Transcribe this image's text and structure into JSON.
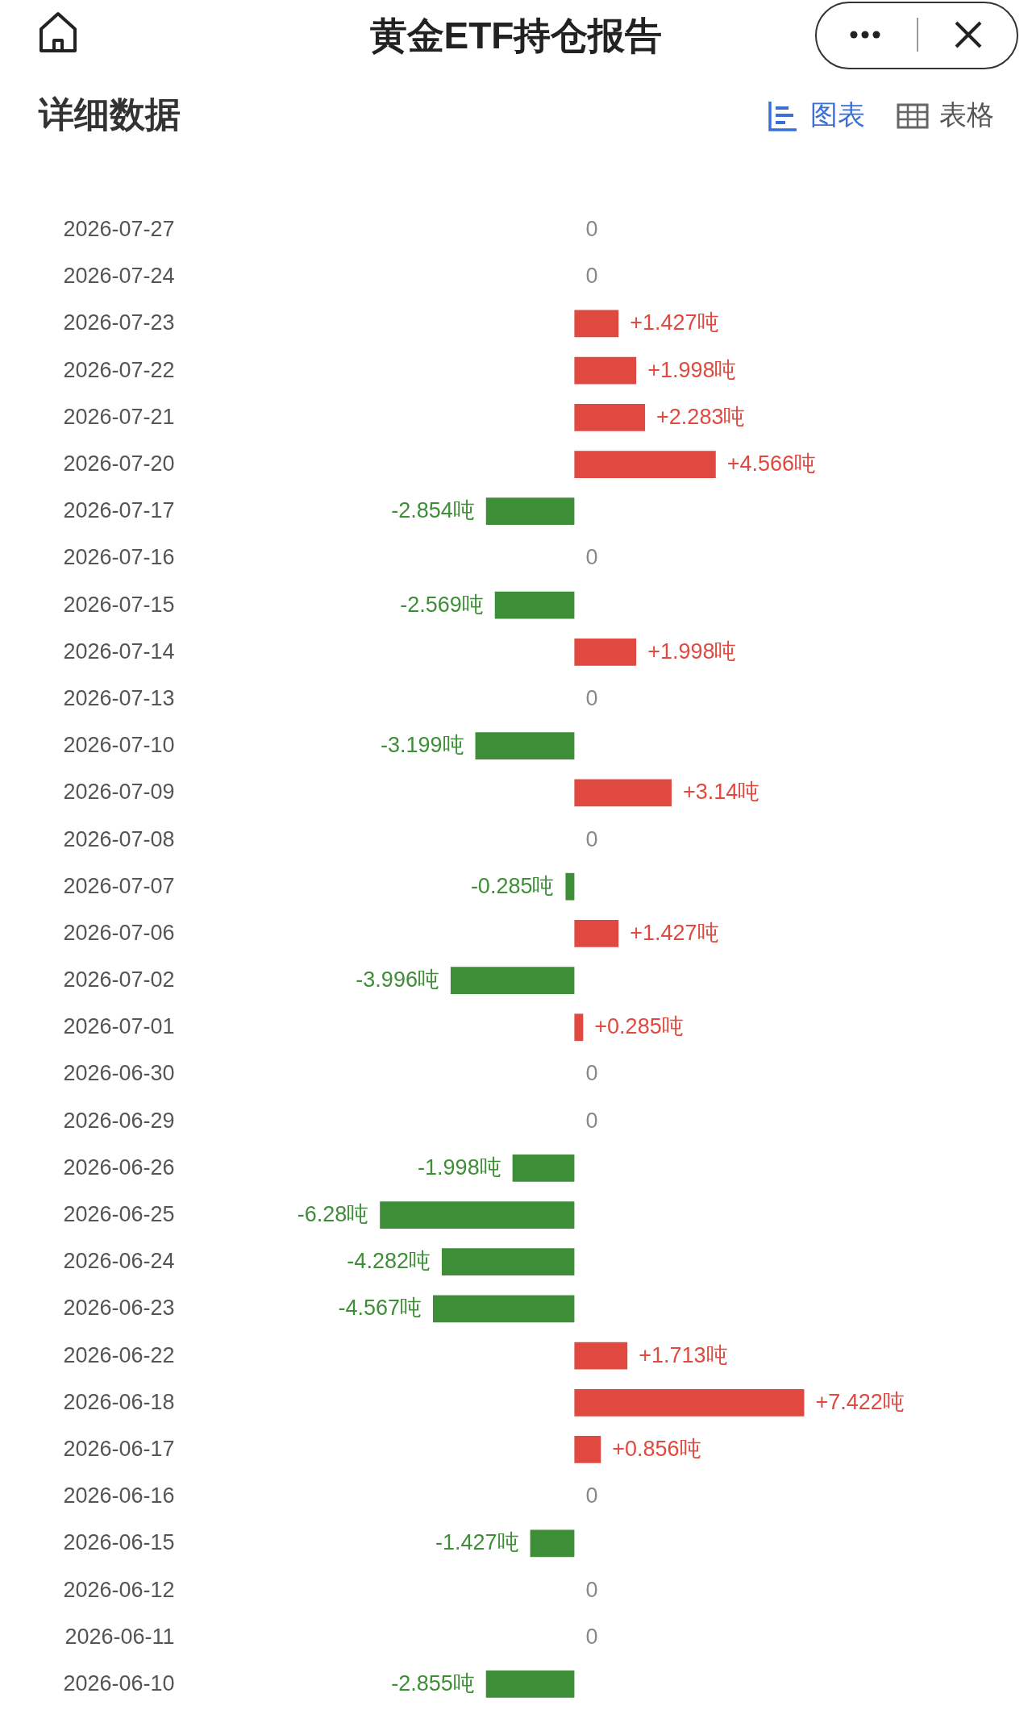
{
  "chart_data": {
    "type": "bar",
    "orientation": "horizontal",
    "title": "黄金ETF持仓报告",
    "subtitle": "详细数据",
    "annotations": [
      "图表",
      "表格"
    ],
    "categories": [
      "2026-07-27",
      "2026-07-24",
      "2026-07-23",
      "2026-07-22",
      "2026-07-21",
      "2026-07-20",
      "2026-07-17",
      "2026-07-16",
      "2026-07-15",
      "2026-07-14",
      "2026-07-13",
      "2026-07-10",
      "2026-07-09",
      "2026-07-08",
      "2026-07-07",
      "2026-07-06",
      "2026-07-02",
      "2026-07-01",
      "2026-06-30",
      "2026-06-29",
      "2026-06-26",
      "2026-06-25",
      "2026-06-24",
      "2026-06-23",
      "2026-06-22",
      "2026-06-18",
      "2026-06-17",
      "2026-06-16",
      "2026-06-15",
      "2026-06-12",
      "2026-06-11",
      "2026-06-10"
    ],
    "values": [
      0,
      0,
      1.427,
      1.998,
      2.283,
      4.566,
      -2.854,
      0,
      -2.569,
      1.998,
      0,
      -3.199,
      3.14,
      0,
      -0.285,
      1.427,
      -3.996,
      0.285,
      0,
      0,
      -1.998,
      -6.28,
      -4.282,
      -4.567,
      1.713,
      7.422,
      0.856,
      0,
      -1.427,
      0,
      0,
      -2.855
    ],
    "value_labels": [
      "0",
      "0",
      "+1.427吨",
      "+1.998吨",
      "+2.283吨",
      "+4.566吨",
      "-2.854吨",
      "0",
      "-2.569吨",
      "+1.998吨",
      "0",
      "-3.199吨",
      "+3.14吨",
      "0",
      "-0.285吨",
      "+1.427吨",
      "-3.996吨",
      "+0.285吨",
      "0",
      "0",
      "-1.998吨",
      "-6.28吨",
      "-4.282吨",
      "-4.567吨",
      "+1.713吨",
      "+7.422吨",
      "+0.856吨",
      "0",
      "-1.427吨",
      "0",
      "0",
      "-2.855吨"
    ],
    "colors": [
      "#888888",
      "#888888",
      "#e0493f",
      "#e0493f",
      "#e0493f",
      "#e0493f",
      "#3e8e37",
      "#888888",
      "#3e8e37",
      "#e0493f",
      "#888888",
      "#3e8e37",
      "#e0493f",
      "#888888",
      "#3e8e37",
      "#e0493f",
      "#3e8e37",
      "#e0493f",
      "#888888",
      "#888888",
      "#3e8e37",
      "#3e8e37",
      "#3e8e37",
      "#3e8e37",
      "#e0493f",
      "#e0493f",
      "#e0493f",
      "#888888",
      "#3e8e37",
      "#888888",
      "#888888",
      "#3e8e37"
    ]
  }
}
